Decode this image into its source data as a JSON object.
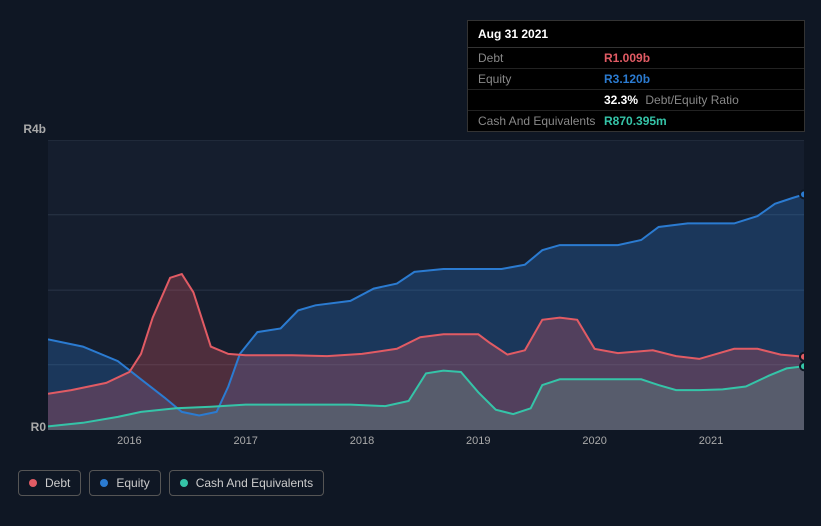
{
  "tooltip": {
    "date": "Aug 31 2021",
    "rows": [
      {
        "label": "Debt",
        "value": "R1.009b",
        "color": "#e15b64"
      },
      {
        "label": "Equity",
        "value": "R3.120b",
        "color": "#2b7bd1"
      },
      {
        "label": "",
        "value": "32.3%",
        "extra": "Debt/Equity Ratio",
        "color": "#ffffff"
      },
      {
        "label": "Cash And Equivalents",
        "value": "R870.395m",
        "color": "#35c4a8"
      }
    ]
  },
  "chart": {
    "type": "area",
    "background_color": "#151e2e",
    "page_background": "#0f1724",
    "grid_color": "#2a3547",
    "ylim": [
      0,
      4
    ],
    "y_ticks": [
      {
        "v": 4,
        "label": "R4b"
      },
      {
        "v": 0,
        "label": "R0"
      }
    ],
    "y_gridlines": [
      0.9,
      1.93,
      2.97,
      4.0
    ],
    "xlim": [
      2015.3,
      2021.8
    ],
    "x_ticks": [
      2016,
      2017,
      2018,
      2019,
      2020,
      2021
    ],
    "series": {
      "debt": {
        "color": "#e15b64",
        "fill": "rgba(225,91,100,0.28)",
        "line_width": 2,
        "data": [
          [
            2015.3,
            0.5
          ],
          [
            2015.5,
            0.55
          ],
          [
            2015.8,
            0.65
          ],
          [
            2016.0,
            0.8
          ],
          [
            2016.1,
            1.05
          ],
          [
            2016.2,
            1.55
          ],
          [
            2016.35,
            2.1
          ],
          [
            2016.45,
            2.15
          ],
          [
            2016.55,
            1.9
          ],
          [
            2016.7,
            1.15
          ],
          [
            2016.85,
            1.05
          ],
          [
            2017.0,
            1.03
          ],
          [
            2017.4,
            1.03
          ],
          [
            2017.7,
            1.02
          ],
          [
            2018.0,
            1.05
          ],
          [
            2018.3,
            1.12
          ],
          [
            2018.5,
            1.28
          ],
          [
            2018.7,
            1.32
          ],
          [
            2019.0,
            1.32
          ],
          [
            2019.1,
            1.2
          ],
          [
            2019.25,
            1.04
          ],
          [
            2019.4,
            1.1
          ],
          [
            2019.55,
            1.52
          ],
          [
            2019.7,
            1.55
          ],
          [
            2019.85,
            1.52
          ],
          [
            2020.0,
            1.12
          ],
          [
            2020.2,
            1.06
          ],
          [
            2020.5,
            1.1
          ],
          [
            2020.7,
            1.02
          ],
          [
            2020.9,
            0.98
          ],
          [
            2021.2,
            1.12
          ],
          [
            2021.4,
            1.12
          ],
          [
            2021.6,
            1.04
          ],
          [
            2021.8,
            1.01
          ]
        ]
      },
      "equity": {
        "color": "#2b7bd1",
        "fill": "rgba(43,123,209,0.28)",
        "line_width": 2,
        "data": [
          [
            2015.3,
            1.25
          ],
          [
            2015.6,
            1.15
          ],
          [
            2015.9,
            0.95
          ],
          [
            2016.1,
            0.7
          ],
          [
            2016.3,
            0.45
          ],
          [
            2016.45,
            0.25
          ],
          [
            2016.6,
            0.2
          ],
          [
            2016.75,
            0.25
          ],
          [
            2016.85,
            0.6
          ],
          [
            2016.95,
            1.05
          ],
          [
            2017.1,
            1.35
          ],
          [
            2017.3,
            1.4
          ],
          [
            2017.45,
            1.65
          ],
          [
            2017.6,
            1.72
          ],
          [
            2017.9,
            1.78
          ],
          [
            2018.1,
            1.95
          ],
          [
            2018.3,
            2.02
          ],
          [
            2018.45,
            2.18
          ],
          [
            2018.7,
            2.22
          ],
          [
            2019.0,
            2.22
          ],
          [
            2019.2,
            2.22
          ],
          [
            2019.4,
            2.28
          ],
          [
            2019.55,
            2.48
          ],
          [
            2019.7,
            2.55
          ],
          [
            2020.0,
            2.55
          ],
          [
            2020.2,
            2.55
          ],
          [
            2020.4,
            2.62
          ],
          [
            2020.55,
            2.8
          ],
          [
            2020.8,
            2.85
          ],
          [
            2021.0,
            2.85
          ],
          [
            2021.2,
            2.85
          ],
          [
            2021.4,
            2.95
          ],
          [
            2021.55,
            3.12
          ],
          [
            2021.7,
            3.2
          ],
          [
            2021.8,
            3.25
          ]
        ]
      },
      "cash": {
        "color": "#35c4a8",
        "fill": "rgba(53,196,168,0.28)",
        "line_width": 2,
        "data": [
          [
            2015.3,
            0.05
          ],
          [
            2015.6,
            0.1
          ],
          [
            2015.9,
            0.18
          ],
          [
            2016.1,
            0.25
          ],
          [
            2016.4,
            0.3
          ],
          [
            2016.7,
            0.32
          ],
          [
            2017.0,
            0.35
          ],
          [
            2017.3,
            0.35
          ],
          [
            2017.6,
            0.35
          ],
          [
            2017.9,
            0.35
          ],
          [
            2018.2,
            0.33
          ],
          [
            2018.4,
            0.4
          ],
          [
            2018.55,
            0.78
          ],
          [
            2018.7,
            0.82
          ],
          [
            2018.85,
            0.8
          ],
          [
            2019.0,
            0.52
          ],
          [
            2019.15,
            0.28
          ],
          [
            2019.3,
            0.22
          ],
          [
            2019.45,
            0.3
          ],
          [
            2019.55,
            0.62
          ],
          [
            2019.7,
            0.7
          ],
          [
            2019.85,
            0.7
          ],
          [
            2020.0,
            0.7
          ],
          [
            2020.2,
            0.7
          ],
          [
            2020.4,
            0.7
          ],
          [
            2020.55,
            0.62
          ],
          [
            2020.7,
            0.55
          ],
          [
            2020.9,
            0.55
          ],
          [
            2021.1,
            0.56
          ],
          [
            2021.3,
            0.6
          ],
          [
            2021.5,
            0.75
          ],
          [
            2021.65,
            0.85
          ],
          [
            2021.8,
            0.88
          ]
        ]
      }
    }
  },
  "legend": {
    "items": [
      {
        "label": "Debt",
        "color": "#e15b64"
      },
      {
        "label": "Equity",
        "color": "#2b7bd1"
      },
      {
        "label": "Cash And Equivalents",
        "color": "#35c4a8"
      }
    ]
  }
}
